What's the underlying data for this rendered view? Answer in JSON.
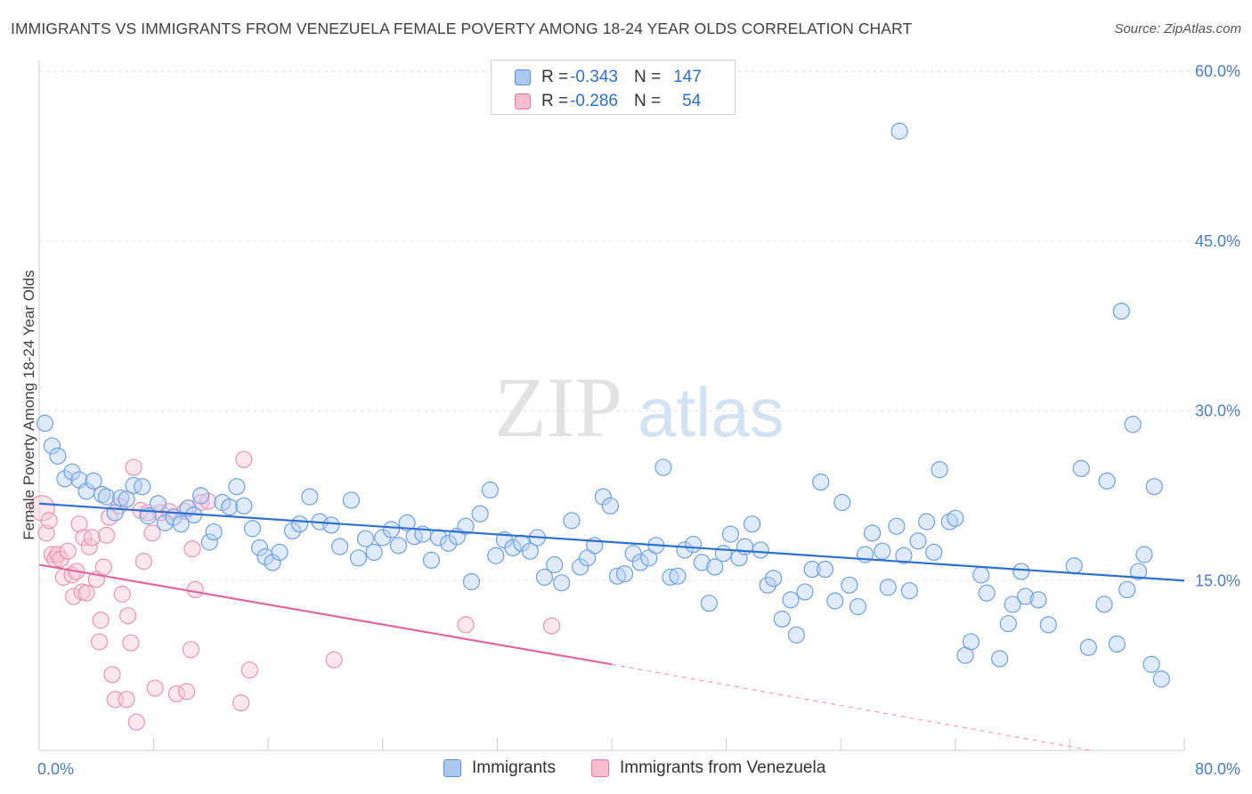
{
  "title": "IMMIGRANTS VS IMMIGRANTS FROM VENEZUELA FEMALE POVERTY AMONG 18-24 YEAR OLDS CORRELATION CHART",
  "source": "Source: ZipAtlas.com",
  "watermark": {
    "zip": "ZIP",
    "atlas": "atlas"
  },
  "legend": {
    "rows": [
      {
        "r_label": "R = ",
        "r_value": "-0.343",
        "n_label": "N = ",
        "n_value": "147",
        "color": "#a9c8f2",
        "border": "#5b8fd8"
      },
      {
        "r_label": "R = ",
        "r_value": "-0.286",
        "n_label": "N = ",
        "n_value": "54",
        "color": "#f7bcd0",
        "border": "#e27aa0"
      }
    ]
  },
  "chart_data": {
    "type": "scatter",
    "xlabel": "",
    "ylabel": "Female Poverty Among 18-24 Year Olds",
    "xlim": [
      0,
      80
    ],
    "ylim": [
      0,
      60
    ],
    "x_tick_labels": [
      "0.0%",
      "80.0%"
    ],
    "y_ticks": [
      15,
      30,
      45,
      60
    ],
    "y_tick_labels": [
      "15.0%",
      "30.0%",
      "45.0%",
      "60.0%"
    ],
    "grid": "horizontal dashed",
    "legend_position": "top-center",
    "series": [
      {
        "name": "Immigrants",
        "color": "#6f9fe0",
        "fill": "#b7d1f4",
        "trend": {
          "x": [
            0,
            80
          ],
          "y": [
            21.8,
            15.0
          ],
          "style": "solid"
        },
        "points": [
          [
            0.4,
            28.9
          ],
          [
            0.9,
            26.9
          ],
          [
            1.3,
            26.0
          ],
          [
            1.8,
            24.0
          ],
          [
            2.3,
            24.6
          ],
          [
            2.8,
            23.9
          ],
          [
            3.3,
            22.9
          ],
          [
            3.8,
            23.8
          ],
          [
            4.4,
            22.6
          ],
          [
            4.7,
            22.4
          ],
          [
            5.3,
            21.0
          ],
          [
            5.7,
            22.3
          ],
          [
            6.1,
            22.2
          ],
          [
            6.6,
            23.4
          ],
          [
            7.2,
            23.3
          ],
          [
            7.6,
            20.7
          ],
          [
            8.3,
            21.8
          ],
          [
            8.8,
            20.1
          ],
          [
            9.4,
            20.6
          ],
          [
            9.9,
            20.0
          ],
          [
            10.4,
            21.4
          ],
          [
            10.8,
            20.8
          ],
          [
            11.3,
            22.5
          ],
          [
            11.9,
            18.4
          ],
          [
            12.2,
            19.3
          ],
          [
            12.8,
            21.9
          ],
          [
            13.3,
            21.5
          ],
          [
            13.8,
            23.3
          ],
          [
            14.3,
            21.6
          ],
          [
            14.9,
            19.6
          ],
          [
            15.4,
            17.9
          ],
          [
            15.8,
            17.1
          ],
          [
            16.3,
            16.6
          ],
          [
            16.8,
            17.5
          ],
          [
            17.7,
            19.4
          ],
          [
            18.2,
            20.0
          ],
          [
            18.9,
            22.4
          ],
          [
            19.6,
            20.2
          ],
          [
            20.4,
            19.9
          ],
          [
            21.0,
            18.0
          ],
          [
            21.8,
            22.1
          ],
          [
            22.3,
            17.0
          ],
          [
            22.8,
            18.7
          ],
          [
            23.4,
            17.5
          ],
          [
            24.0,
            18.8
          ],
          [
            24.6,
            19.5
          ],
          [
            25.1,
            18.1
          ],
          [
            25.7,
            20.1
          ],
          [
            26.2,
            18.9
          ],
          [
            26.8,
            19.1
          ],
          [
            27.4,
            16.8
          ],
          [
            27.9,
            18.8
          ],
          [
            28.6,
            18.3
          ],
          [
            29.2,
            18.9
          ],
          [
            29.8,
            19.8
          ],
          [
            30.2,
            14.9
          ],
          [
            30.8,
            20.9
          ],
          [
            31.5,
            23.0
          ],
          [
            31.9,
            17.2
          ],
          [
            32.5,
            18.6
          ],
          [
            33.1,
            17.9
          ],
          [
            33.7,
            18.3
          ],
          [
            34.3,
            17.6
          ],
          [
            34.8,
            18.8
          ],
          [
            35.3,
            15.3
          ],
          [
            36.0,
            16.4
          ],
          [
            36.5,
            14.8
          ],
          [
            37.2,
            20.3
          ],
          [
            37.8,
            16.2
          ],
          [
            38.3,
            17.0
          ],
          [
            38.8,
            18.1
          ],
          [
            39.4,
            22.4
          ],
          [
            39.9,
            21.6
          ],
          [
            40.4,
            15.4
          ],
          [
            40.9,
            15.6
          ],
          [
            41.5,
            17.4
          ],
          [
            42.0,
            16.6
          ],
          [
            42.6,
            17.0
          ],
          [
            43.1,
            18.1
          ],
          [
            43.6,
            25.0
          ],
          [
            44.1,
            15.3
          ],
          [
            44.6,
            15.4
          ],
          [
            45.1,
            17.7
          ],
          [
            45.7,
            18.2
          ],
          [
            46.3,
            16.6
          ],
          [
            46.8,
            13.0
          ],
          [
            47.2,
            16.2
          ],
          [
            47.8,
            17.4
          ],
          [
            48.3,
            19.1
          ],
          [
            48.9,
            17.0
          ],
          [
            49.3,
            18.0
          ],
          [
            49.8,
            20.0
          ],
          [
            50.4,
            17.7
          ],
          [
            50.9,
            14.6
          ],
          [
            51.3,
            15.2
          ],
          [
            51.9,
            11.6
          ],
          [
            52.5,
            13.3
          ],
          [
            52.9,
            10.2
          ],
          [
            53.5,
            14.0
          ],
          [
            54.0,
            16.0
          ],
          [
            54.6,
            23.7
          ],
          [
            54.9,
            16.0
          ],
          [
            55.6,
            13.2
          ],
          [
            56.1,
            21.9
          ],
          [
            56.6,
            14.6
          ],
          [
            57.2,
            12.7
          ],
          [
            57.7,
            17.3
          ],
          [
            58.2,
            19.2
          ],
          [
            58.9,
            17.6
          ],
          [
            59.3,
            14.4
          ],
          [
            59.9,
            19.8
          ],
          [
            60.4,
            17.2
          ],
          [
            60.8,
            14.1
          ],
          [
            61.4,
            18.5
          ],
          [
            62.0,
            20.2
          ],
          [
            62.5,
            17.5
          ],
          [
            62.9,
            24.8
          ],
          [
            63.6,
            20.2
          ],
          [
            64.0,
            20.5
          ],
          [
            60.1,
            54.7
          ],
          [
            64.7,
            8.4
          ],
          [
            65.1,
            9.6
          ],
          [
            65.8,
            15.5
          ],
          [
            66.2,
            13.9
          ],
          [
            67.1,
            8.1
          ],
          [
            67.7,
            11.2
          ],
          [
            68.0,
            12.9
          ],
          [
            68.6,
            15.8
          ],
          [
            68.9,
            13.6
          ],
          [
            69.8,
            13.3
          ],
          [
            70.5,
            11.1
          ],
          [
            72.3,
            16.3
          ],
          [
            72.8,
            24.9
          ],
          [
            73.3,
            9.1
          ],
          [
            74.4,
            12.9
          ],
          [
            74.6,
            23.8
          ],
          [
            75.3,
            9.4
          ],
          [
            75.6,
            38.8
          ],
          [
            76.0,
            14.2
          ],
          [
            76.4,
            28.8
          ],
          [
            76.8,
            15.8
          ],
          [
            77.2,
            17.3
          ],
          [
            77.7,
            7.6
          ],
          [
            77.9,
            23.3
          ],
          [
            78.4,
            6.3
          ]
        ]
      },
      {
        "name": "Immigrants from Venezuela",
        "color": "#e993b4",
        "fill": "#f9c7d8",
        "trend": {
          "x": [
            0,
            40
          ],
          "y": [
            16.4,
            7.6
          ],
          "style": "solid",
          "extend_x": [
            40,
            73.5
          ],
          "extend_y": [
            7.6,
            0.0
          ],
          "extend_style": "dashed"
        },
        "points": [
          [
            0.2,
            21.4
          ],
          [
            0.5,
            19.2
          ],
          [
            0.7,
            20.3
          ],
          [
            0.9,
            17.3
          ],
          [
            1.1,
            16.9
          ],
          [
            1.3,
            17.3
          ],
          [
            1.5,
            16.9
          ],
          [
            1.7,
            15.3
          ],
          [
            2.0,
            17.6
          ],
          [
            2.3,
            15.5
          ],
          [
            2.4,
            13.6
          ],
          [
            2.6,
            15.8
          ],
          [
            2.8,
            20.0
          ],
          [
            3.0,
            14.0
          ],
          [
            3.1,
            18.8
          ],
          [
            3.3,
            13.9
          ],
          [
            3.5,
            18.0
          ],
          [
            3.7,
            18.8
          ],
          [
            4.0,
            15.1
          ],
          [
            4.2,
            9.6
          ],
          [
            4.3,
            11.5
          ],
          [
            4.5,
            16.2
          ],
          [
            4.7,
            19.0
          ],
          [
            4.9,
            20.6
          ],
          [
            5.1,
            6.7
          ],
          [
            5.3,
            4.5
          ],
          [
            5.6,
            21.6
          ],
          [
            5.8,
            13.8
          ],
          [
            6.1,
            4.5
          ],
          [
            6.2,
            11.9
          ],
          [
            6.4,
            9.5
          ],
          [
            6.6,
            25.0
          ],
          [
            6.8,
            2.5
          ],
          [
            7.1,
            21.2
          ],
          [
            7.3,
            16.7
          ],
          [
            7.6,
            21.0
          ],
          [
            7.9,
            19.2
          ],
          [
            8.1,
            5.5
          ],
          [
            8.5,
            21.0
          ],
          [
            9.1,
            21.1
          ],
          [
            9.6,
            5.0
          ],
          [
            10.2,
            21.1
          ],
          [
            10.3,
            5.2
          ],
          [
            10.6,
            8.9
          ],
          [
            10.7,
            17.8
          ],
          [
            10.9,
            14.2
          ],
          [
            11.3,
            21.9
          ],
          [
            11.8,
            22.0
          ],
          [
            14.1,
            4.2
          ],
          [
            14.3,
            25.7
          ],
          [
            14.7,
            7.1
          ],
          [
            20.6,
            8.0
          ],
          [
            29.8,
            11.1
          ],
          [
            35.8,
            11.0
          ]
        ]
      }
    ]
  }
}
